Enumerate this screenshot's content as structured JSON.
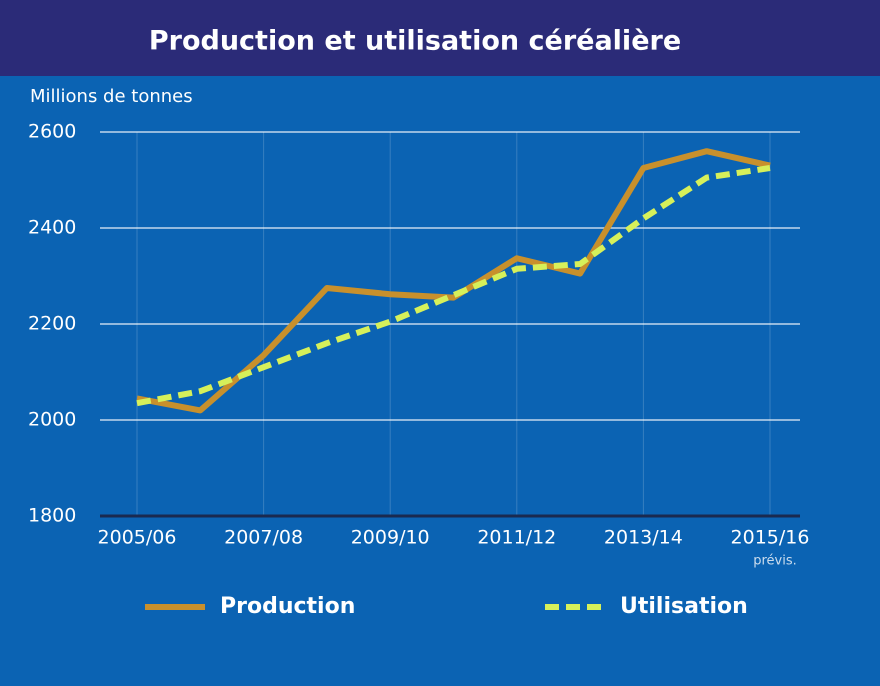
{
  "chart_data": {
    "type": "line",
    "title": "Production et utilisation céréalière",
    "y_label": "Millions de tonnes",
    "categories": [
      "2005/06",
      null,
      "2007/08",
      null,
      "2009/10",
      null,
      "2011/12",
      null,
      "2013/14",
      null,
      "2015/16"
    ],
    "x_note": "prévis.",
    "series": [
      {
        "name": "Production",
        "color": "#c8902c",
        "dashed": false,
        "values": [
          2045,
          2020,
          2135,
          2275,
          2262,
          2255,
          2337,
          2305,
          2525,
          2560,
          2530
        ]
      },
      {
        "name": "Utilisation",
        "color": "#d6f05a",
        "dashed": true,
        "values": [
          2035,
          2060,
          2110,
          2160,
          2205,
          2260,
          2315,
          2325,
          2420,
          2505,
          2525
        ]
      }
    ],
    "ylim": [
      1800,
      2600
    ],
    "yticks": [
      1800,
      2000,
      2200,
      2400,
      2600
    ],
    "grid": true
  }
}
